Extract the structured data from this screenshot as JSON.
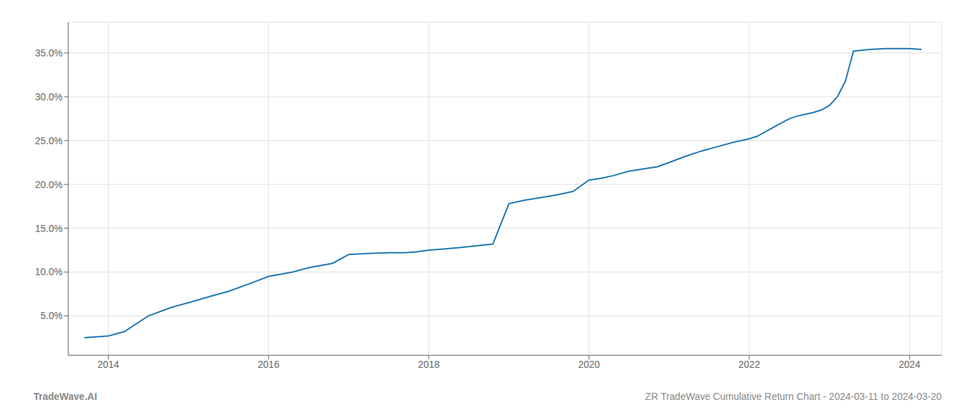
{
  "chart_data": {
    "type": "line",
    "x": [
      2013.7,
      2014.0,
      2014.2,
      2014.5,
      2014.8,
      2015.0,
      2015.3,
      2015.5,
      2015.8,
      2016.0,
      2016.3,
      2016.5,
      2016.8,
      2017.0,
      2017.2,
      2017.5,
      2017.7,
      2017.85,
      2018.0,
      2018.15,
      2018.4,
      2018.6,
      2018.8,
      2019.0,
      2019.2,
      2019.4,
      2019.6,
      2019.8,
      2020.0,
      2020.15,
      2020.3,
      2020.5,
      2020.7,
      2020.85,
      2021.0,
      2021.2,
      2021.4,
      2021.6,
      2021.8,
      2022.0,
      2022.1,
      2022.2,
      2022.4,
      2022.5,
      2022.6,
      2022.7,
      2022.8,
      2022.9,
      2023.0,
      2023.1,
      2023.2,
      2023.25,
      2023.3,
      2023.5,
      2023.7,
      2023.9,
      2024.0,
      2024.15
    ],
    "values": [
      0.025,
      0.027,
      0.032,
      0.05,
      0.06,
      0.065,
      0.073,
      0.078,
      0.088,
      0.095,
      0.1,
      0.105,
      0.11,
      0.12,
      0.121,
      0.122,
      0.122,
      0.123,
      0.125,
      0.126,
      0.128,
      0.13,
      0.132,
      0.178,
      0.182,
      0.185,
      0.188,
      0.192,
      0.205,
      0.207,
      0.21,
      0.215,
      0.218,
      0.22,
      0.225,
      0.232,
      0.238,
      0.243,
      0.248,
      0.252,
      0.255,
      0.26,
      0.27,
      0.275,
      0.278,
      0.28,
      0.282,
      0.285,
      0.29,
      0.3,
      0.318,
      0.335,
      0.352,
      0.354,
      0.355,
      0.355,
      0.355,
      0.354
    ],
    "color": "#1f77b4",
    "xlim": [
      2013.5,
      2024.4
    ],
    "xticks": [
      2014,
      2016,
      2018,
      2020,
      2022,
      2024
    ],
    "ylim": [
      0.005,
      0.385
    ],
    "yticks": [
      {
        "value": 0.05,
        "label": "5.0%"
      },
      {
        "value": 0.1,
        "label": "10.0%"
      },
      {
        "value": 0.15,
        "label": "15.0%"
      },
      {
        "value": 0.2,
        "label": "20.0%"
      },
      {
        "value": 0.25,
        "label": "25.0%"
      },
      {
        "value": 0.3,
        "label": "30.0%"
      },
      {
        "value": 0.35,
        "label": "35.0%"
      }
    ],
    "grid": true,
    "annotations": [
      "TradeWave.AI",
      "ZR TradeWave Cumulative Return Chart - 2024-03-11 to 2024-03-20"
    ]
  }
}
